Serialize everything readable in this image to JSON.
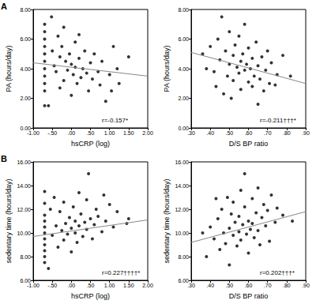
{
  "chart_data": [
    {
      "type": "scatter",
      "panel_label": "A",
      "x_label": "hsCRP (log)",
      "y_label": "PA (hours/day)",
      "annotation": "r=-0.157*",
      "color": "#000000",
      "grid": false,
      "xlim": [
        -1,
        2
      ],
      "xticks": [
        {
          "value": -1,
          "label": "-1.00"
        },
        {
          "value": -0.5,
          "label": "-.50"
        },
        {
          "value": 0,
          "label": ".00"
        },
        {
          "value": 0.5,
          "label": ".50"
        },
        {
          "value": 1,
          "label": "1.00"
        },
        {
          "value": 1.5,
          "label": "1.50"
        },
        {
          "value": 2,
          "label": "2.00"
        }
      ],
      "ylim": [
        0,
        8
      ],
      "yticks": [
        {
          "value": 0,
          "label": "0.00"
        },
        {
          "value": 2,
          "label": "2.00"
        },
        {
          "value": 4,
          "label": "4.00"
        },
        {
          "value": 6,
          "label": "6.00"
        },
        {
          "value": 8,
          "label": "8.00"
        }
      ],
      "x": [
        -0.7,
        -0.7,
        -0.7,
        -0.7,
        -0.7,
        -0.7,
        -0.7,
        -0.7,
        -0.7,
        -0.7,
        -0.7,
        -0.52,
        -0.5,
        -0.45,
        -0.4,
        -0.35,
        -0.3,
        -0.3,
        -0.25,
        -0.2,
        -0.2,
        -0.15,
        -0.1,
        -0.05,
        0.0,
        0.0,
        0.05,
        0.1,
        0.1,
        0.15,
        0.2,
        0.2,
        0.25,
        0.3,
        0.35,
        0.4,
        0.45,
        0.5,
        0.55,
        0.6,
        0.7,
        0.75,
        0.8,
        0.9,
        1.0,
        1.05,
        1.2,
        1.25,
        1.5,
        1.1,
        -0.6
      ],
      "values": [
        5.5,
        5.0,
        4.5,
        4.0,
        3.5,
        3.0,
        6.0,
        2.5,
        1.5,
        6.5,
        7.0,
        7.5,
        5.2,
        4.2,
        3.8,
        6.2,
        4.8,
        2.7,
        5.5,
        3.2,
        6.8,
        4.5,
        3.9,
        5.0,
        4.3,
        2.2,
        3.6,
        5.8,
        4.1,
        3.0,
        4.7,
        6.3,
        3.4,
        4.0,
        5.2,
        3.7,
        2.5,
        4.4,
        3.3,
        5.0,
        3.8,
        2.9,
        4.5,
        1.8,
        3.6,
        2.5,
        4.0,
        3.0,
        4.8,
        5.5,
        1.5
      ],
      "fit": {
        "x": [
          -1,
          2
        ],
        "y": [
          4.4,
          3.5
        ]
      }
    },
    {
      "type": "scatter",
      "x_label": "D/S BP ratio",
      "y_label": "PA (hours/day)",
      "annotation": "r=-0.211†††*",
      "color": "#000000",
      "grid": false,
      "xlim": [
        0.3,
        0.9
      ],
      "xticks": [
        {
          "value": 0.3,
          "label": ".30"
        },
        {
          "value": 0.4,
          "label": ".40"
        },
        {
          "value": 0.5,
          "label": ".50"
        },
        {
          "value": 0.6,
          "label": ".60"
        },
        {
          "value": 0.7,
          "label": ".70"
        },
        {
          "value": 0.8,
          "label": ".80"
        },
        {
          "value": 0.9,
          "label": ".90"
        }
      ],
      "ylim": [
        0,
        8
      ],
      "yticks": [
        {
          "value": 0,
          "label": "0.00"
        },
        {
          "value": 2,
          "label": "2.00"
        },
        {
          "value": 4,
          "label": "4.00"
        },
        {
          "value": 6,
          "label": "6.00"
        },
        {
          "value": 8,
          "label": "8.00"
        }
      ],
      "x": [
        0.38,
        0.4,
        0.42,
        0.44,
        0.45,
        0.46,
        0.47,
        0.48,
        0.49,
        0.5,
        0.5,
        0.51,
        0.52,
        0.52,
        0.53,
        0.54,
        0.55,
        0.55,
        0.56,
        0.56,
        0.57,
        0.58,
        0.58,
        0.59,
        0.6,
        0.6,
        0.61,
        0.62,
        0.62,
        0.63,
        0.64,
        0.65,
        0.65,
        0.66,
        0.67,
        0.68,
        0.69,
        0.7,
        0.71,
        0.72,
        0.74,
        0.75,
        0.78,
        0.82,
        0.36,
        0.43
      ],
      "values": [
        4.0,
        5.5,
        3.8,
        6.0,
        4.6,
        7.5,
        2.3,
        5.2,
        3.5,
        4.3,
        6.5,
        2.0,
        4.9,
        3.2,
        5.6,
        4.1,
        3.7,
        6.2,
        4.5,
        2.6,
        5.0,
        3.9,
        7.0,
        4.3,
        3.1,
        5.4,
        4.0,
        2.8,
        4.7,
        3.5,
        5.8,
        4.2,
        1.6,
        3.3,
        4.8,
        2.5,
        3.9,
        5.2,
        3.0,
        4.4,
        2.9,
        3.6,
        4.9,
        3.5,
        5.0,
        2.8
      ],
      "fit": {
        "x": [
          0.3,
          0.9
        ],
        "y": [
          5.1,
          3.0
        ]
      }
    },
    {
      "type": "scatter",
      "panel_label": "B",
      "x_label": "hsCRP (log)",
      "y_label": "sedentary time (hours/day)",
      "annotation": "r=0.227††††*",
      "color": "#000000",
      "grid": false,
      "xlim": [
        -1,
        2
      ],
      "xticks": [
        {
          "value": -1,
          "label": "-1.00"
        },
        {
          "value": -0.5,
          "label": "-.50"
        },
        {
          "value": 0,
          "label": ".00"
        },
        {
          "value": 0.5,
          "label": ".50"
        },
        {
          "value": 1,
          "label": "1.00"
        },
        {
          "value": 1.5,
          "label": "1.50"
        },
        {
          "value": 2,
          "label": "2.00"
        }
      ],
      "ylim": [
        6,
        16
      ],
      "yticks": [
        {
          "value": 6,
          "label": "6.00"
        },
        {
          "value": 8,
          "label": "8.00"
        },
        {
          "value": 10,
          "label": "10.00"
        },
        {
          "value": 12,
          "label": "12.00"
        },
        {
          "value": 14,
          "label": "14.00"
        },
        {
          "value": 16,
          "label": "16.00"
        }
      ],
      "x": [
        -0.7,
        -0.7,
        -0.7,
        -0.7,
        -0.7,
        -0.7,
        -0.7,
        -0.7,
        -0.7,
        -0.7,
        -0.7,
        -0.55,
        -0.5,
        -0.45,
        -0.4,
        -0.35,
        -0.3,
        -0.25,
        -0.2,
        -0.2,
        -0.15,
        -0.1,
        -0.05,
        0.0,
        0.0,
        0.05,
        0.1,
        0.1,
        0.15,
        0.2,
        0.2,
        0.25,
        0.3,
        0.35,
        0.4,
        0.4,
        0.45,
        0.5,
        0.55,
        0.6,
        0.65,
        0.7,
        0.8,
        0.85,
        0.9,
        1.0,
        1.1,
        1.2,
        1.5,
        1.45,
        -0.6
      ],
      "values": [
        8.0,
        8.5,
        9.0,
        9.5,
        10.0,
        10.5,
        11.0,
        11.5,
        12.5,
        13.5,
        7.5,
        12.0,
        9.8,
        13.0,
        10.6,
        8.8,
        11.8,
        10.2,
        9.4,
        12.6,
        10.8,
        9.9,
        11.3,
        10.4,
        8.4,
        12.2,
        10.0,
        11.0,
        9.2,
        13.4,
        10.6,
        11.6,
        9.7,
        10.9,
        12.8,
        10.3,
        15.0,
        11.2,
        9.5,
        10.7,
        12.0,
        11.4,
        10.1,
        13.2,
        11.0,
        12.4,
        10.5,
        11.8,
        11.2,
        10.8,
        7.0
      ],
      "fit": {
        "x": [
          -1,
          2
        ],
        "y": [
          9.7,
          11.1
        ]
      }
    },
    {
      "type": "scatter",
      "x_label": "D/S BP ratio",
      "y_label": "sedentary time (hours/day)",
      "annotation": "r=0.202†††*",
      "color": "#000000",
      "grid": false,
      "xlim": [
        0.3,
        0.9
      ],
      "xticks": [
        {
          "value": 0.3,
          "label": ".30"
        },
        {
          "value": 0.4,
          "label": ".40"
        },
        {
          "value": 0.5,
          "label": ".50"
        },
        {
          "value": 0.6,
          "label": ".60"
        },
        {
          "value": 0.7,
          "label": ".70"
        },
        {
          "value": 0.8,
          "label": ".80"
        },
        {
          "value": 0.9,
          "label": ".90"
        }
      ],
      "ylim": [
        6,
        16
      ],
      "yticks": [
        {
          "value": 6,
          "label": "6.00"
        },
        {
          "value": 8,
          "label": "8.00"
        },
        {
          "value": 10,
          "label": "10.00"
        },
        {
          "value": 12,
          "label": "12.00"
        },
        {
          "value": 14,
          "label": "14.00"
        },
        {
          "value": 16,
          "label": "16.00"
        }
      ],
      "x": [
        0.38,
        0.4,
        0.42,
        0.44,
        0.45,
        0.46,
        0.47,
        0.48,
        0.49,
        0.5,
        0.5,
        0.51,
        0.52,
        0.52,
        0.53,
        0.54,
        0.55,
        0.55,
        0.56,
        0.56,
        0.57,
        0.58,
        0.58,
        0.59,
        0.6,
        0.6,
        0.61,
        0.62,
        0.62,
        0.63,
        0.64,
        0.65,
        0.65,
        0.66,
        0.67,
        0.68,
        0.69,
        0.7,
        0.71,
        0.72,
        0.74,
        0.75,
        0.78,
        0.83,
        0.36,
        0.43
      ],
      "values": [
        8.0,
        10.5,
        9.5,
        11.2,
        8.6,
        12.0,
        10.0,
        9.1,
        13.0,
        10.4,
        7.3,
        11.6,
        9.8,
        12.6,
        10.9,
        8.9,
        11.4,
        10.1,
        13.6,
        9.4,
        10.7,
        12.2,
        15.0,
        9.9,
        11.0,
        8.3,
        10.3,
        12.9,
        10.8,
        9.6,
        11.7,
        10.2,
        13.8,
        9.0,
        11.3,
        12.4,
        10.6,
        11.9,
        9.3,
        13.2,
        10.9,
        12.1,
        11.5,
        11.0,
        10.0,
        12.9
      ],
      "fit": {
        "x": [
          0.3,
          0.9
        ],
        "y": [
          9.2,
          11.8
        ]
      }
    }
  ]
}
